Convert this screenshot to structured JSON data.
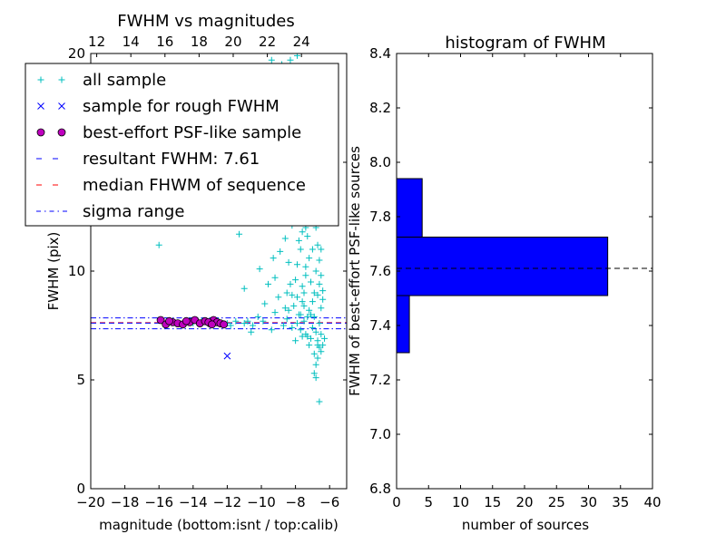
{
  "chart_data": [
    {
      "type": "scatter",
      "title": "FWHM vs magnitudes",
      "xlabel": "magnitude (bottom:isnt / top:calib)",
      "ylabel": "FWHM (pix)",
      "xlim": [
        -20,
        -5
      ],
      "ylim": [
        0,
        20
      ],
      "xticks": [
        -20,
        -18,
        -16,
        -14,
        -12,
        -10,
        -8,
        -6
      ],
      "xtick_labels": [
        "−20",
        "−18",
        "−16",
        "−14",
        "−12",
        "−10",
        "−8",
        "−6"
      ],
      "yticks": [
        0,
        5,
        10,
        15,
        20
      ],
      "ytick_labels": [
        "0",
        "5",
        "10",
        "15",
        "20"
      ],
      "top_axis": {
        "ticks": [
          12,
          14,
          16,
          18,
          20,
          22,
          24
        ],
        "labels": [
          "12",
          "14",
          "16",
          "18",
          "20",
          "22",
          "24"
        ],
        "isnt_at_12": -19.65,
        "isnt_per_calib": 1.0
      },
      "legend": {
        "placement": "upper-left",
        "entries": [
          {
            "label": "all sample",
            "marker": "+",
            "color": "#00bfbf"
          },
          {
            "label": "sample for rough FWHM",
            "marker": "x",
            "color": "#0000ff"
          },
          {
            "label": "best-effort PSF-like sample",
            "marker": "o",
            "color": "#bf00bf"
          },
          {
            "label": "resultant FWHM: 7.61",
            "marker": "dashed",
            "color": "#0000ff"
          },
          {
            "label": "median FHWM of sequence",
            "marker": "dashed",
            "color": "#ff0000"
          },
          {
            "label": "sigma range",
            "marker": "dashdot",
            "color": "#0000ff"
          }
        ]
      },
      "lines": {
        "resultant_fwhm": 7.61,
        "median_fwhm": 7.63,
        "sigma_low": 7.35,
        "sigma_high": 7.85
      },
      "series": [
        {
          "name": "all sample",
          "points": [
            [
              -16.0,
              11.2
            ],
            [
              -11.3,
              11.7
            ],
            [
              -10.1,
              10.1
            ],
            [
              -11.0,
              9.2
            ],
            [
              -9.6,
              9.4
            ],
            [
              -9.0,
              8.8
            ],
            [
              -8.6,
              8.3
            ],
            [
              -8.2,
              8.9
            ],
            [
              -8.0,
              9.6
            ],
            [
              -7.9,
              10.3
            ],
            [
              -7.7,
              11.0
            ],
            [
              -7.6,
              11.8
            ],
            [
              -7.5,
              12.5
            ],
            [
              -7.3,
              13.2
            ],
            [
              -7.2,
              14.4
            ],
            [
              -7.0,
              15.3
            ],
            [
              -6.9,
              13.0
            ],
            [
              -6.8,
              12.0
            ],
            [
              -6.7,
              11.2
            ],
            [
              -6.6,
              10.5
            ],
            [
              -6.5,
              9.8
            ],
            [
              -6.4,
              9.1
            ],
            [
              -7.4,
              10.2
            ],
            [
              -7.1,
              9.5
            ],
            [
              -7.0,
              8.6
            ],
            [
              -6.9,
              7.9
            ],
            [
              -6.8,
              7.2
            ],
            [
              -6.7,
              6.8
            ],
            [
              -6.6,
              6.5
            ],
            [
              -6.5,
              6.3
            ],
            [
              -6.8,
              5.7
            ],
            [
              -6.9,
              5.3
            ],
            [
              -6.8,
              5.1
            ],
            [
              -6.6,
              4.0
            ],
            [
              -6.7,
              6.6
            ],
            [
              -7.6,
              8.6
            ],
            [
              -7.8,
              8.0
            ],
            [
              -8.3,
              9.4
            ],
            [
              -8.4,
              10.4
            ],
            [
              -7.3,
              11.6
            ],
            [
              -7.1,
              12.6
            ],
            [
              -6.6,
              12.3
            ],
            [
              -6.5,
              11.0
            ],
            [
              -7.5,
              9.0
            ],
            [
              -7.2,
              8.2
            ],
            [
              -6.4,
              8.7
            ],
            [
              -8.8,
              12.6
            ],
            [
              -9.0,
              14.0
            ],
            [
              -9.6,
              15.2
            ],
            [
              -8.8,
              16.4
            ],
            [
              -8.6,
              17.2
            ],
            [
              -8.0,
              18.6
            ],
            [
              -8.8,
              19.5
            ],
            [
              -9.4,
              19.7
            ],
            [
              -8.3,
              19.7
            ],
            [
              -7.9,
              19.9
            ],
            [
              -9.0,
              19.3
            ],
            [
              -7.2,
              18.9
            ],
            [
              -8.3,
              16.8
            ],
            [
              -7.7,
              16.2
            ],
            [
              -6.9,
              16.8
            ],
            [
              -6.6,
              17.4
            ],
            [
              -7.4,
              17.3
            ],
            [
              -8.1,
              15.6
            ],
            [
              -7.3,
              14.9
            ],
            [
              -6.8,
              14.6
            ],
            [
              -7.6,
              13.6
            ],
            [
              -7.9,
              12.9
            ],
            [
              -8.2,
              12.1
            ],
            [
              -8.6,
              11.5
            ],
            [
              -8.9,
              10.9
            ],
            [
              -9.3,
              10.6
            ],
            [
              -9.2,
              9.7
            ],
            [
              -8.5,
              9.0
            ],
            [
              -9.8,
              8.5
            ],
            [
              -9.2,
              8.1
            ],
            [
              -10.2,
              7.9
            ],
            [
              -10.5,
              7.5
            ],
            [
              -11.0,
              7.6
            ],
            [
              -11.5,
              7.7
            ],
            [
              -12.0,
              7.6
            ],
            [
              -12.5,
              7.7
            ],
            [
              -13.0,
              7.6
            ],
            [
              -13.5,
              7.7
            ],
            [
              -14.0,
              7.6
            ],
            [
              -14.5,
              7.7
            ],
            [
              -15.0,
              7.6
            ],
            [
              -15.5,
              7.7
            ],
            [
              -11.8,
              7.5
            ],
            [
              -10.8,
              7.7
            ],
            [
              -10.6,
              7.2
            ],
            [
              -9.4,
              7.3
            ],
            [
              -9.9,
              7.7
            ],
            [
              -8.7,
              7.5
            ],
            [
              -8.5,
              7.8
            ],
            [
              -8.2,
              7.4
            ],
            [
              -7.9,
              7.6
            ],
            [
              -7.7,
              7.3
            ],
            [
              -7.5,
              7.7
            ],
            [
              -7.3,
              7.0
            ],
            [
              -7.1,
              6.9
            ],
            [
              -7.0,
              7.4
            ],
            [
              -6.9,
              6.2
            ],
            [
              -6.7,
              6.0
            ],
            [
              -7.2,
              6.6
            ],
            [
              -7.4,
              7.1
            ],
            [
              -7.6,
              7.0
            ],
            [
              -8.0,
              6.8
            ],
            [
              -6.6,
              7.6
            ],
            [
              -6.5,
              7.1
            ],
            [
              -6.4,
              6.6
            ],
            [
              -7.8,
              11.4
            ],
            [
              -7.4,
              12.0
            ],
            [
              -7.0,
              11.0
            ],
            [
              -6.8,
              10.0
            ],
            [
              -6.6,
              9.4
            ],
            [
              -7.2,
              10.6
            ],
            [
              -7.4,
              9.8
            ],
            [
              -7.6,
              9.3
            ],
            [
              -7.9,
              8.8
            ],
            [
              -8.1,
              8.4
            ],
            [
              -6.5,
              8.3
            ],
            [
              -6.7,
              8.9
            ],
            [
              -6.9,
              9.0
            ],
            [
              -7.1,
              8.0
            ],
            [
              -7.3,
              7.9
            ],
            [
              -7.5,
              8.4
            ],
            [
              -7.7,
              8.0
            ],
            [
              -8.4,
              8.2
            ],
            [
              -6.3,
              6.9
            ]
          ]
        },
        {
          "name": "sample for rough FWHM",
          "points": [
            [
              -12.0,
              6.1
            ]
          ]
        },
        {
          "name": "best-effort PSF-like sample",
          "points": [
            [
              -15.9,
              7.75
            ],
            [
              -15.6,
              7.55
            ],
            [
              -15.2,
              7.65
            ],
            [
              -14.9,
              7.6
            ],
            [
              -14.6,
              7.55
            ],
            [
              -14.2,
              7.65
            ],
            [
              -13.9,
              7.75
            ],
            [
              -13.6,
              7.6
            ],
            [
              -13.3,
              7.7
            ],
            [
              -13.0,
              7.6
            ],
            [
              -12.8,
              7.75
            ],
            [
              -12.6,
              7.65
            ],
            [
              -12.4,
              7.6
            ],
            [
              -12.2,
              7.55
            ],
            [
              -15.4,
              7.7
            ],
            [
              -14.4,
              7.7
            ],
            [
              -13.1,
              7.65
            ],
            [
              -12.9,
              7.55
            ]
          ]
        }
      ]
    },
    {
      "type": "bar",
      "orientation": "horizontal",
      "title": "histogram of FWHM",
      "xlabel": "number of sources",
      "ylabel": "FWHM of best-effort PSF-like sources",
      "xlim": [
        0,
        40
      ],
      "ylim": [
        6.8,
        8.4
      ],
      "xticks": [
        0,
        5,
        10,
        15,
        20,
        25,
        30,
        35,
        40
      ],
      "xtick_labels": [
        "0",
        "5",
        "10",
        "15",
        "20",
        "25",
        "30",
        "35",
        "40"
      ],
      "yticks": [
        6.8,
        7.0,
        7.2,
        7.4,
        7.6,
        7.8,
        8.0,
        8.2,
        8.4
      ],
      "ytick_labels": [
        "6.8",
        "7.0",
        "7.2",
        "7.4",
        "7.6",
        "7.8",
        "8.0",
        "8.2",
        "8.4"
      ],
      "bins": [
        {
          "low": 7.3,
          "high": 7.51,
          "count": 2
        },
        {
          "low": 7.51,
          "high": 7.725,
          "count": 33
        },
        {
          "low": 7.725,
          "high": 7.94,
          "count": 4
        }
      ],
      "color": "#0000ff",
      "reference_line": 7.61
    }
  ]
}
